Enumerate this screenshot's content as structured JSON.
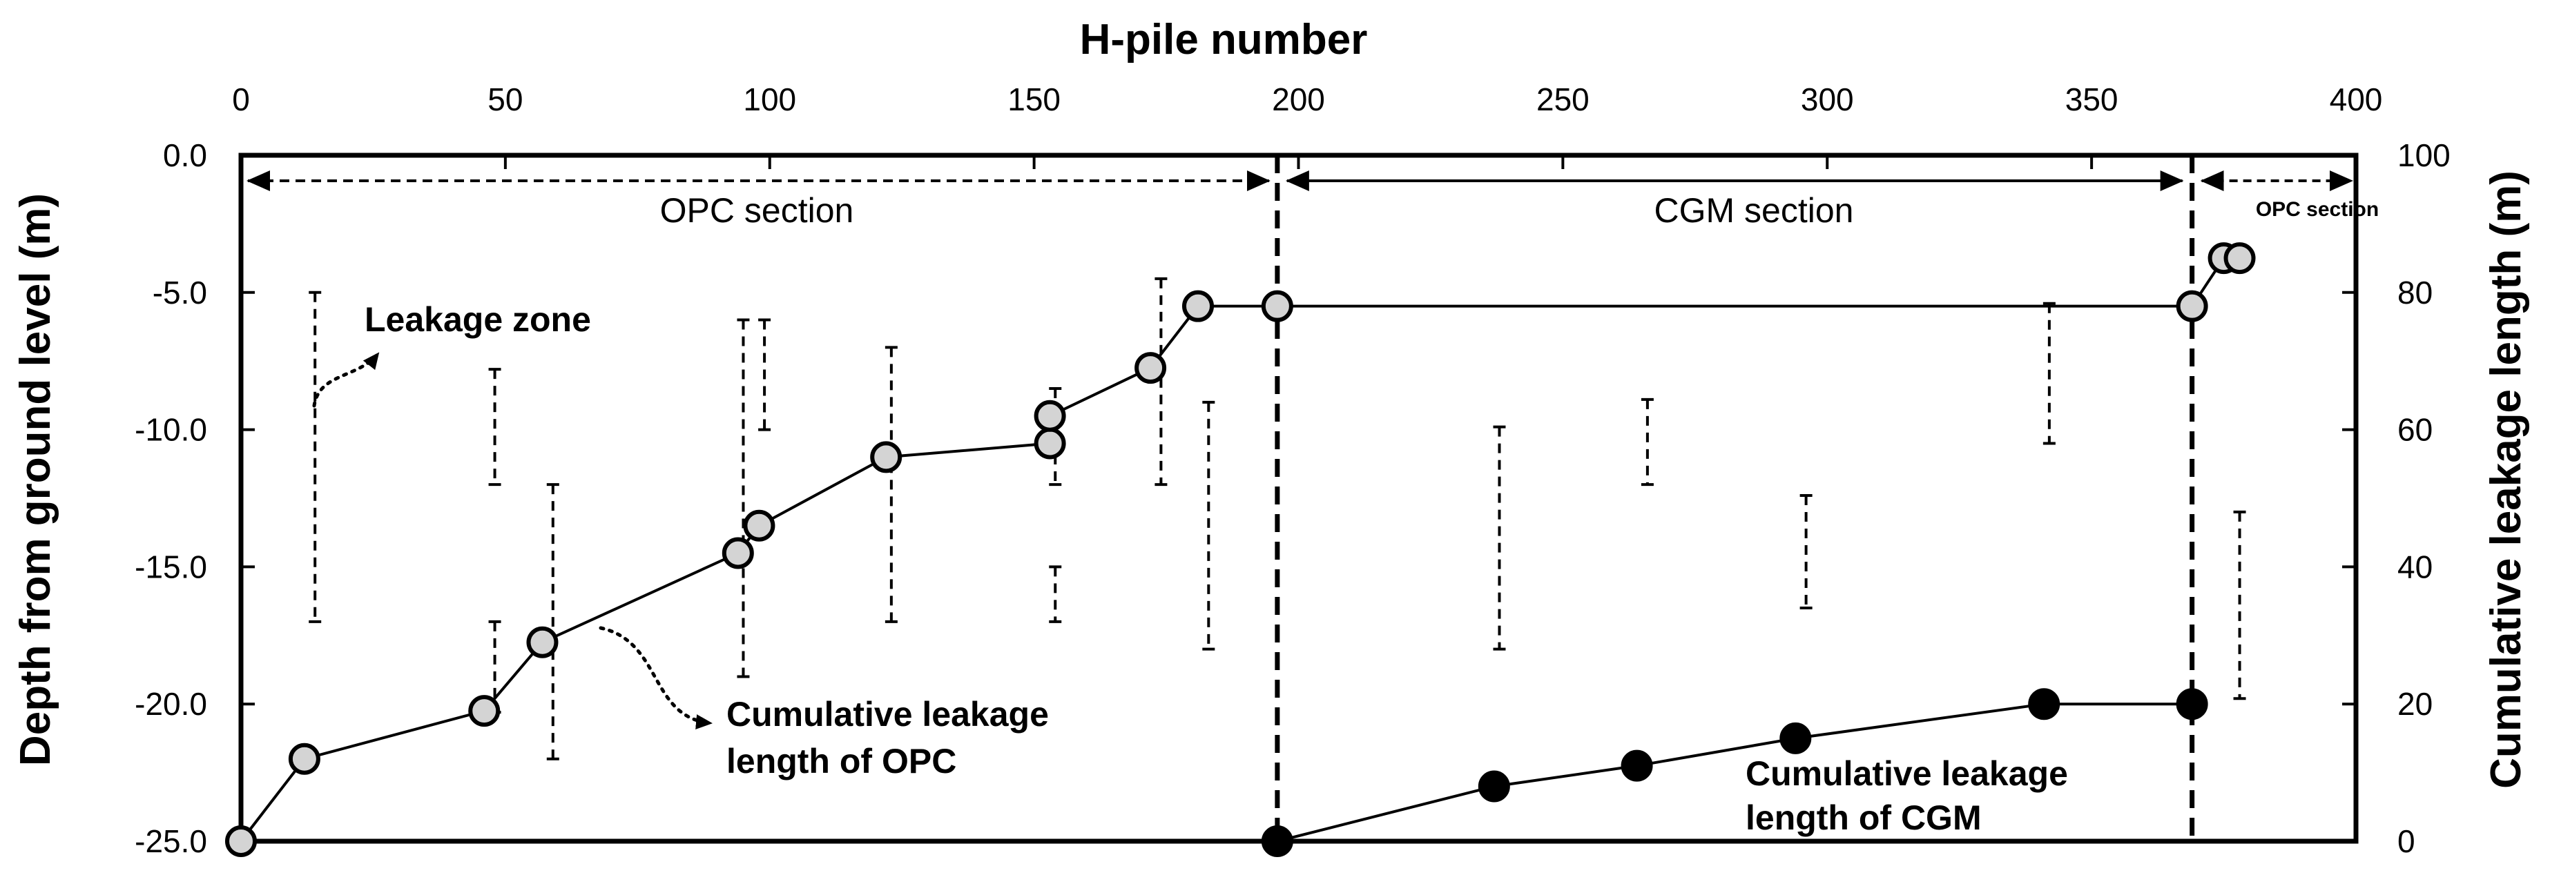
{
  "chart_data": {
    "type": "scatter",
    "x_axis": {
      "title": "H-pile number",
      "range": [
        0,
        400
      ],
      "ticks": [
        0,
        50,
        100,
        150,
        200,
        250,
        300,
        350,
        400
      ],
      "tick_labels": [
        "0",
        "50",
        "100",
        "150",
        "200",
        "250",
        "300",
        "350",
        "400"
      ]
    },
    "y_left_axis": {
      "title": "Depth from ground level (m)",
      "range": [
        -25,
        0
      ],
      "ticks": [
        0,
        -5,
        -10,
        -15,
        -20,
        -25
      ],
      "tick_labels": [
        "0.0",
        "-5.0",
        "-10.0",
        "-15.0",
        "-20.0",
        "-25.0"
      ]
    },
    "y_right_axis": {
      "title": "Cumulative leakage length (m)",
      "range": [
        0,
        100
      ],
      "ticks": [
        0,
        20,
        40,
        60,
        80,
        100
      ],
      "tick_labels": [
        "0",
        "20",
        "40",
        "60",
        "80",
        "100"
      ]
    },
    "section_boundaries": [
      196,
      369
    ],
    "sections": [
      {
        "label": "OPC section",
        "from": 0,
        "to": 196
      },
      {
        "label": "CGM section",
        "from": 196,
        "to": 369
      },
      {
        "label": "OPC section",
        "from": 369,
        "to": 400
      }
    ],
    "leakage_zones": [
      {
        "x": 14,
        "top": -5.0,
        "bottom": -17.0
      },
      {
        "x": 48,
        "top": -7.8,
        "bottom": -12.0
      },
      {
        "x": 48,
        "top": -17.0,
        "bottom": -20.3
      },
      {
        "x": 59,
        "top": -12.0,
        "bottom": -22.0
      },
      {
        "x": 95,
        "top": -6.0,
        "bottom": -19.0
      },
      {
        "x": 99,
        "top": -6.0,
        "bottom": -10.0
      },
      {
        "x": 123,
        "top": -7.0,
        "bottom": -17.0
      },
      {
        "x": 154,
        "top": -8.5,
        "bottom": -12.0
      },
      {
        "x": 154,
        "top": -15.0,
        "bottom": -17.0
      },
      {
        "x": 174,
        "top": -4.5,
        "bottom": -12.0
      },
      {
        "x": 183,
        "top": -9.0,
        "bottom": -18.0
      },
      {
        "x": 238,
        "top": -9.9,
        "bottom": -18.0
      },
      {
        "x": 266,
        "top": -8.9,
        "bottom": -12.0
      },
      {
        "x": 296,
        "top": -12.4,
        "bottom": -16.5
      },
      {
        "x": 342,
        "top": -5.4,
        "bottom": -10.5
      },
      {
        "x": 378,
        "top": -13.0,
        "bottom": -19.8
      }
    ],
    "series": [
      {
        "name": "Cumulative leakage length of OPC",
        "marker": "open-gray",
        "points": [
          [
            0,
            0
          ],
          [
            12,
            12
          ],
          [
            46,
            19
          ],
          [
            57,
            29
          ],
          [
            94,
            42
          ],
          [
            98,
            46
          ],
          [
            122,
            56
          ],
          [
            153,
            58
          ],
          [
            153,
            62
          ],
          [
            172,
            69
          ],
          [
            181,
            78
          ],
          [
            196,
            78
          ],
          [
            369,
            78
          ],
          [
            375,
            85
          ],
          [
            378,
            85
          ]
        ]
      },
      {
        "name": "Cumulative leakage length of CGM",
        "marker": "filled-black",
        "points": [
          [
            196,
            0
          ],
          [
            237,
            8
          ],
          [
            264,
            11
          ],
          [
            294,
            15
          ],
          [
            341,
            20
          ],
          [
            369,
            20
          ]
        ]
      }
    ],
    "annotations": [
      "Leakage zone",
      "Cumulative leakage length of OPC",
      "Cumulative leakage length of CGM"
    ],
    "grid": false,
    "legend": "none"
  },
  "labels": {
    "section_opc_left": "OPC  section",
    "section_cgm": "CGM  section",
    "section_opc_right": "OPC  section",
    "leakage_zone": "Leakage  zone",
    "opc_line1": "Cumulative  leakage",
    "opc_line2": "length  of  OPC",
    "cgm_line1": "Cumulative  leakage",
    "cgm_line2": "length  of  CGM"
  },
  "colors": {
    "open_marker_fill": "#d4d4d4",
    "filled_marker_fill": "#000000",
    "line": "#000000"
  }
}
